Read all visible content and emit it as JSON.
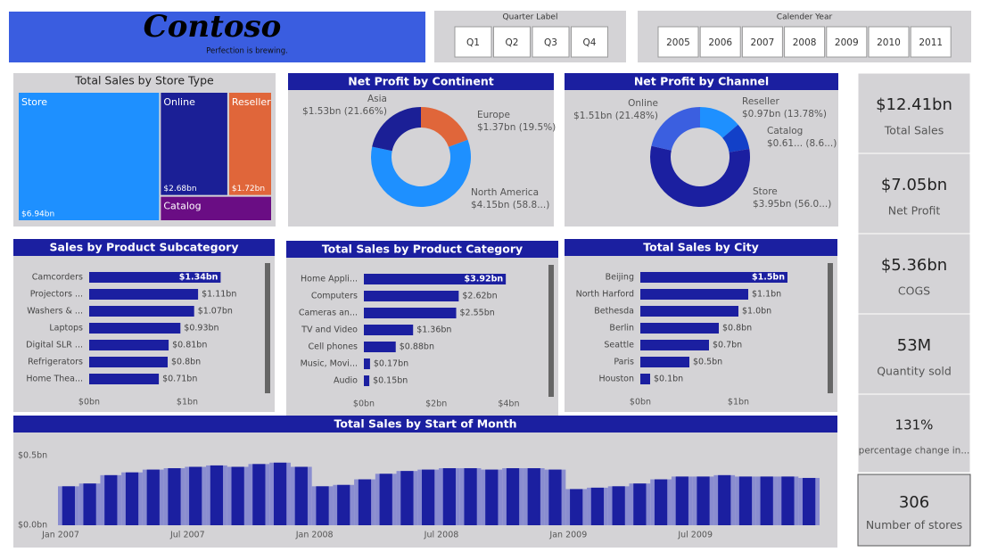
{
  "logo": {
    "title": "Contoso",
    "tagline": "Perfection is brewing."
  },
  "slicers": [
    {
      "label": "Quarter Label",
      "options": [
        "Q1",
        "Q2",
        "Q3",
        "Q4"
      ]
    },
    {
      "label": "Calender Year",
      "options": [
        "2005",
        "2006",
        "2007",
        "2008",
        "2009",
        "2010",
        "2011"
      ]
    }
  ],
  "treemap": {
    "title": "Total Sales by Store Type",
    "categories": [
      "Store",
      "Online",
      "Reseller",
      "Catalog"
    ],
    "values": [
      6.94,
      2.68,
      1.72,
      1.07
    ],
    "value_labels": [
      "$6.94bn",
      "$2.68bn",
      "$1.72bn",
      null
    ],
    "colors": [
      "#1e90ff",
      "#1b1f96",
      "#e0663a",
      "#6a0d84"
    ]
  },
  "continent": {
    "title": "Net Profit by Continent",
    "categories": [
      "Europe",
      "North America",
      "Asia"
    ],
    "values": [
      1.37,
      4.15,
      1.53
    ],
    "value_labels": [
      "$1.37bn (19.5%)",
      "$4.15bn (58.8...)",
      "$1.53bn (21.66%)"
    ],
    "colors": [
      "#e0663a",
      "#1e90ff",
      "#1b1f96"
    ]
  },
  "channel": {
    "title": "Net Profit by Channel",
    "categories": [
      "Reseller",
      "Catalog",
      "Store",
      "Online"
    ],
    "values": [
      0.97,
      0.61,
      3.95,
      1.51
    ],
    "value_labels": [
      "$0.97bn (13.78%)",
      "$0.61... (8.6...)",
      "$3.95bn (56.0...)",
      "$1.51bn (21.48%)"
    ],
    "colors": [
      "#1e90ff",
      "#1240c8",
      "#1b1fa0",
      "#3b5fe0"
    ]
  },
  "subcategory": {
    "title": "Sales by Product Subcategory",
    "categories": [
      "Camcorders",
      "Projectors ...",
      "Washers & ...",
      "Laptops",
      "Digital SLR ...",
      "Refrigerators",
      "Home Thea..."
    ],
    "values": [
      1.34,
      1.11,
      1.07,
      0.93,
      0.81,
      0.8,
      0.71
    ],
    "value_labels": [
      "$1.34bn",
      "$1.11bn",
      "$1.07bn",
      "$0.93bn",
      "$0.81bn",
      "$0.8bn",
      "$0.71bn"
    ],
    "xlim": [
      0,
      1.8
    ],
    "xticks": [
      {
        "value": 0,
        "label": "$0bn"
      },
      {
        "value": 1,
        "label": "$1bn"
      }
    ],
    "color": "#1b1fa0"
  },
  "category": {
    "title": "Total Sales by Product Category",
    "categories": [
      "Home Appli...",
      "Computers",
      "Cameras an...",
      "TV and Video",
      "Cell phones",
      "Music, Movi...",
      "Audio"
    ],
    "values": [
      3.92,
      2.62,
      2.55,
      1.36,
      0.88,
      0.17,
      0.15
    ],
    "value_labels": [
      "$3.92bn",
      "$2.62bn",
      "$2.55bn",
      "$1.36bn",
      "$0.88bn",
      "$0.17bn",
      "$0.15bn"
    ],
    "xlim": [
      0,
      5
    ],
    "xticks": [
      {
        "value": 0,
        "label": "$0bn"
      },
      {
        "value": 2,
        "label": "$2bn"
      },
      {
        "value": 4,
        "label": "$4bn"
      }
    ],
    "color": "#1b1fa0"
  },
  "city": {
    "title": "Total Sales by City",
    "categories": [
      "Beijing",
      "North Harford",
      "Bethesda",
      "Berlin",
      "Seattle",
      "Paris",
      "Houston"
    ],
    "values": [
      1.5,
      1.1,
      1.0,
      0.8,
      0.7,
      0.5,
      0.1
    ],
    "value_labels": [
      "$1.5bn",
      "$1.1bn",
      "$1.0bn",
      "$0.8bn",
      "$0.7bn",
      "$0.5bn",
      "$0.1bn"
    ],
    "xlim": [
      0,
      1.9
    ],
    "xticks": [
      {
        "value": 0,
        "label": "$0bn"
      },
      {
        "value": 1,
        "label": "$1bn"
      }
    ],
    "color": "#1b1fa0"
  },
  "monthly": {
    "title": "Total Sales by Start of Month",
    "categories": [
      "Jan 2007",
      null,
      null,
      null,
      null,
      null,
      "Jul 2007",
      null,
      null,
      null,
      null,
      null,
      "Jan 2008",
      null,
      null,
      null,
      null,
      null,
      "Jul 2008",
      null,
      null,
      null,
      null,
      null,
      "Jan 2009",
      null,
      null,
      null,
      null,
      null,
      "Jul 2009",
      null,
      null,
      null,
      null,
      null
    ],
    "values": [
      0.28,
      0.3,
      0.36,
      0.38,
      0.4,
      0.41,
      0.42,
      0.43,
      0.42,
      0.44,
      0.45,
      0.42,
      0.28,
      0.29,
      0.33,
      0.37,
      0.39,
      0.4,
      0.41,
      0.41,
      0.4,
      0.41,
      0.41,
      0.4,
      0.26,
      0.27,
      0.28,
      0.3,
      0.33,
      0.35,
      0.35,
      0.36,
      0.35,
      0.35,
      0.35,
      0.34
    ],
    "ylim": [
      0,
      0.5
    ],
    "yticks": [
      {
        "value": 0,
        "label": "$0.0bn"
      },
      {
        "value": 0.5,
        "label": "$0.5bn"
      }
    ],
    "color": "#1b1fa0"
  },
  "kpis": [
    {
      "value": "$12.41bn",
      "label": "Total Sales"
    },
    {
      "value": "$7.05bn",
      "label": "Net Profit"
    },
    {
      "value": "$5.36bn",
      "label": "COGS"
    },
    {
      "value": "53M",
      "label": "Quantity sold"
    },
    {
      "value": "131%",
      "label": "percentage change in..."
    },
    {
      "value": "306",
      "label": "Number of stores"
    }
  ]
}
